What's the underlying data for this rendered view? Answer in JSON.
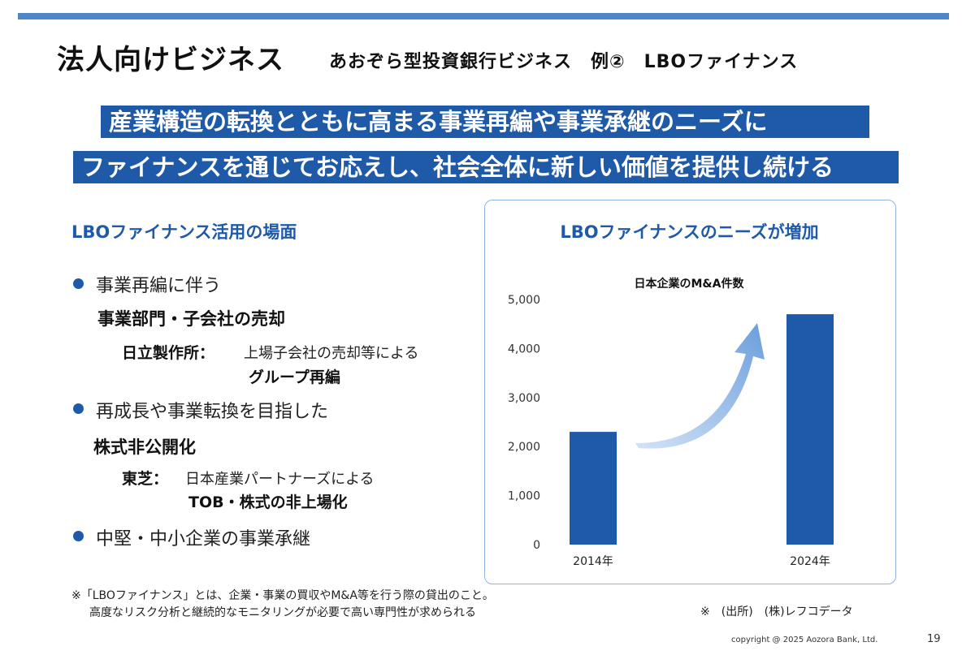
{
  "header": {
    "title": "法人向けビジネス",
    "subtitle": "あおぞら型投資銀行ビジネス　例②　LBOファイナンス"
  },
  "banner": {
    "line1": "産業構造の転換とともに高まる事業再編や事業承継のニーズに",
    "line2": "ファイナンスを通じてお応えし、社会全体に新しい価値を提供し続ける"
  },
  "left": {
    "section_title": "LBOファイナンス活用の場面",
    "bullets": [
      {
        "text": "事業再編に伴う",
        "bold": "事業部門・子会社の売却",
        "example_company": "日立製作所：",
        "example_text": "上場子会社の売却等による",
        "example_result": "グループ再編"
      },
      {
        "text": "再成長や事業転換を目指した",
        "bold": "株式非公開化",
        "example_company": "東芝：",
        "example_text": "日本産業パートナーズによる",
        "example_result": "TOB・株式の非上場化"
      },
      {
        "text": "中堅・中小企業の事業承継"
      }
    ]
  },
  "chart_panel": {
    "heading": "LBOファイナンスのニーズが増加"
  },
  "chart_data": {
    "type": "bar",
    "title": "日本企業のM&A件数",
    "categories": [
      "2014年",
      "2024年"
    ],
    "values": [
      2300,
      4700
    ],
    "ylim": [
      0,
      5000
    ],
    "yticks": [
      0,
      1000,
      2000,
      3000,
      4000,
      5000
    ],
    "ytick_labels": [
      "0",
      "1,000",
      "2,000",
      "3,000",
      "4,000",
      "5,000"
    ],
    "bar_color": "#1f5aa8",
    "arrow": "upward curved arrow between bars",
    "grid": false
  },
  "footer": {
    "note_line1": "※「LBOファイナンス」とは、企業・事業の買収やM&A等を行う際の貸出のこと。",
    "note_line2": "高度なリスク分析と継続的なモニタリングが必要で高い専門性が求められる",
    "source": "※　(出所)　(株)レフコデータ",
    "copyright": "copyright @ 2025 Aozora Bank, Ltd.",
    "page": "19"
  },
  "colors": {
    "accent": "#1f5aa8",
    "topbar": "#4f86c6",
    "chart_border": "#8fb4dd"
  }
}
